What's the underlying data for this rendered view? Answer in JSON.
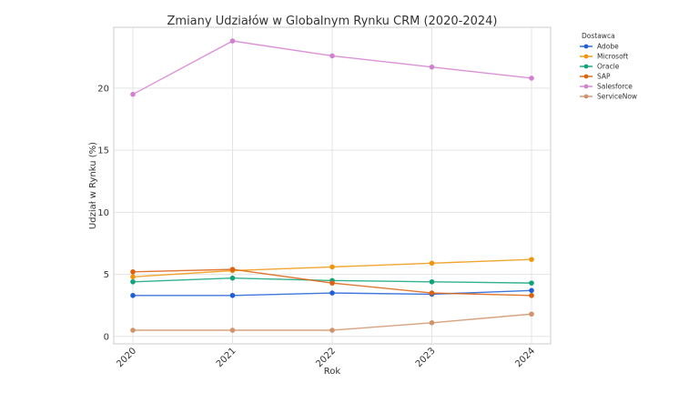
{
  "chart_data": {
    "type": "line",
    "title": "Zmiany Udziałów w Globalnym Rynku CRM (2020-2024)",
    "xlabel": "Rok",
    "ylabel": "Udział w Rynku (%)",
    "x": [
      "2020",
      "2021",
      "2022",
      "2023",
      "2024"
    ],
    "yticks": [
      0,
      5,
      10,
      15,
      20
    ],
    "ylim": [
      -0.6,
      24.9
    ],
    "grid": true,
    "legend_title": "Dostawca",
    "legend_position": "outside-top-right",
    "series": [
      {
        "name": "Adobe",
        "color": "#1f5fd6",
        "values": [
          3.3,
          3.3,
          3.5,
          3.4,
          3.7
        ]
      },
      {
        "name": "Microsoft",
        "color": "#f0960a",
        "values": [
          4.8,
          5.3,
          5.6,
          5.9,
          6.2
        ]
      },
      {
        "name": "Oracle",
        "color": "#10a37a",
        "values": [
          4.4,
          4.7,
          4.5,
          4.4,
          4.3
        ]
      },
      {
        "name": "SAP",
        "color": "#dc620f",
        "values": [
          5.2,
          5.4,
          4.3,
          3.5,
          3.3
        ]
      },
      {
        "name": "Salesforce",
        "color": "#d37fd0",
        "values": [
          19.5,
          23.8,
          22.6,
          21.7,
          20.8
        ]
      },
      {
        "name": "ServiceNow",
        "color": "#d1936a",
        "values": [
          0.5,
          0.5,
          0.5,
          1.1,
          1.8
        ]
      }
    ]
  }
}
